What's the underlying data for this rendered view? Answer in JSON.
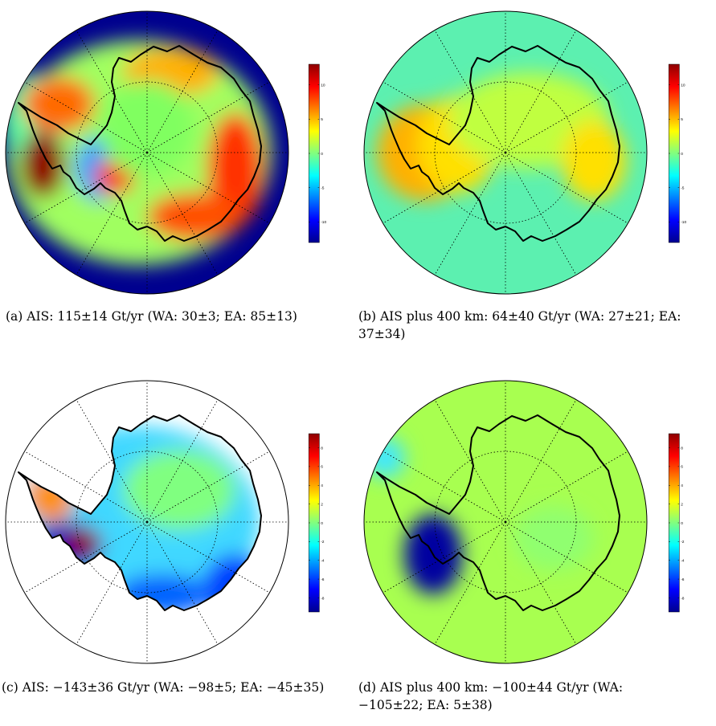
{
  "panels": [
    {
      "id": "a",
      "caption_lines": [
        "(a)  AIS: 115±14 Gt/yr (WA: 30±3; EA: 85±13)"
      ],
      "colorbar": {
        "min": -13,
        "max": 13,
        "ticks": [
          10,
          5,
          0,
          -5,
          -10
        ]
      },
      "background": "#00008f",
      "land_fill": "#8ee07a",
      "blobs": [
        {
          "feature": "WA coast high",
          "value": 11,
          "color": "#8f0000"
        },
        {
          "feature": "Peninsula",
          "value": 6,
          "color": "#ff6a00"
        },
        {
          "feature": "Wilkes Land",
          "value": 8,
          "color": "#ff4000"
        },
        {
          "feature": "Dronning Maud",
          "value": 6,
          "color": "#ff8a00"
        },
        {
          "feature": "Amundsen low",
          "value": -4,
          "color": "#2f9fff"
        }
      ]
    },
    {
      "id": "b",
      "caption_lines": [
        "(b)  AIS plus 400 km: 64±40 Gt/yr (WA: 27±21; EA:",
        "37±34)"
      ],
      "colorbar": {
        "min": -13,
        "max": 13,
        "ticks": [
          10,
          5,
          0,
          -5,
          -10
        ]
      },
      "background": "#5cf0b0",
      "land_fill": "#a8ff50"
    },
    {
      "id": "c",
      "caption_lines": [
        "(c)  AIS: −143±36 Gt/yr (WA: −98±5; EA: −45±35)"
      ],
      "colorbar": {
        "min": -9.5,
        "max": 9.5,
        "ticks": [
          8,
          6,
          4,
          2,
          0,
          -2,
          -4,
          -6,
          -8
        ]
      },
      "background": "#ffffff",
      "land_fill": "#40d8ff"
    },
    {
      "id": "d",
      "caption_lines": [
        "(d)  AIS  plus  400  km:   −100±44  Gt/yr  (WA:",
        "−105±22; EA: 5±38)"
      ],
      "colorbar": {
        "min": -9.5,
        "max": 9.5,
        "ticks": [
          8,
          6,
          4,
          2,
          0,
          -2,
          -4,
          -6,
          -8
        ]
      },
      "background": "#a8ff50",
      "land_fill": "#a8ff50"
    }
  ],
  "colormap": "jet",
  "colors": {
    "outline": "#000000",
    "graticule": "#000000"
  }
}
